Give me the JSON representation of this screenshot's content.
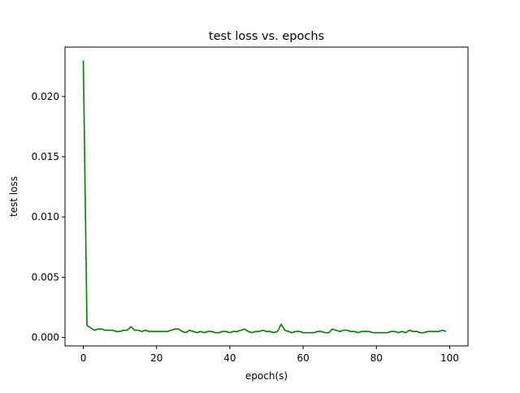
{
  "chart_data": {
    "type": "line",
    "title": "test loss vs. epochs",
    "xlabel": "epoch(s)",
    "ylabel": "test loss",
    "xlim": [
      -5,
      105
    ],
    "ylim": [
      -0.0007,
      0.0241
    ],
    "xticks": [
      0,
      20,
      40,
      60,
      80,
      100
    ],
    "yticks": [
      0.0,
      0.005,
      0.01,
      0.015,
      0.02
    ],
    "ytick_labels": [
      "0.000",
      "0.005",
      "0.010",
      "0.015",
      "0.020"
    ],
    "grid": false,
    "series": [
      {
        "color": "#008000",
        "x": [
          0,
          1,
          2,
          3,
          4,
          5,
          6,
          7,
          8,
          9,
          10,
          11,
          12,
          13,
          14,
          15,
          16,
          17,
          18,
          19,
          20,
          21,
          22,
          23,
          24,
          25,
          26,
          27,
          28,
          29,
          30,
          31,
          32,
          33,
          34,
          35,
          36,
          37,
          38,
          39,
          40,
          41,
          42,
          43,
          44,
          45,
          46,
          47,
          48,
          49,
          50,
          51,
          52,
          53,
          54,
          55,
          56,
          57,
          58,
          59,
          60,
          61,
          62,
          63,
          64,
          65,
          66,
          67,
          68,
          69,
          70,
          71,
          72,
          73,
          74,
          75,
          76,
          77,
          78,
          79,
          80,
          81,
          82,
          83,
          84,
          85,
          86,
          87,
          88,
          89,
          90,
          91,
          92,
          93,
          94,
          95,
          96,
          97,
          98,
          99
        ],
        "values": [
          0.023,
          0.001,
          0.0008,
          0.0006,
          0.0007,
          0.0007,
          0.0006,
          0.0006,
          0.0006,
          0.0005,
          0.0005,
          0.0006,
          0.0006,
          0.0009,
          0.0006,
          0.0006,
          0.0005,
          0.0006,
          0.0005,
          0.0005,
          0.0005,
          0.0005,
          0.0005,
          0.0005,
          0.0006,
          0.0007,
          0.0007,
          0.0005,
          0.0004,
          0.0006,
          0.0005,
          0.0004,
          0.0005,
          0.0004,
          0.0005,
          0.0005,
          0.0004,
          0.0004,
          0.0005,
          0.0005,
          0.0004,
          0.0005,
          0.0005,
          0.0006,
          0.0007,
          0.0005,
          0.0004,
          0.0005,
          0.0005,
          0.0006,
          0.0005,
          0.0005,
          0.0004,
          0.0005,
          0.0011,
          0.0006,
          0.0005,
          0.0004,
          0.0005,
          0.0005,
          0.0004,
          0.0004,
          0.0004,
          0.0004,
          0.0005,
          0.0005,
          0.0004,
          0.0004,
          0.0007,
          0.0006,
          0.0005,
          0.0006,
          0.0006,
          0.0005,
          0.0005,
          0.0004,
          0.0005,
          0.0005,
          0.0005,
          0.0004,
          0.0004,
          0.0004,
          0.0004,
          0.0004,
          0.0005,
          0.0005,
          0.0004,
          0.0005,
          0.0004,
          0.0006,
          0.0005,
          0.0005,
          0.0004,
          0.0004,
          0.0005,
          0.0005,
          0.0005,
          0.0005,
          0.0006,
          0.0005
        ]
      }
    ]
  }
}
